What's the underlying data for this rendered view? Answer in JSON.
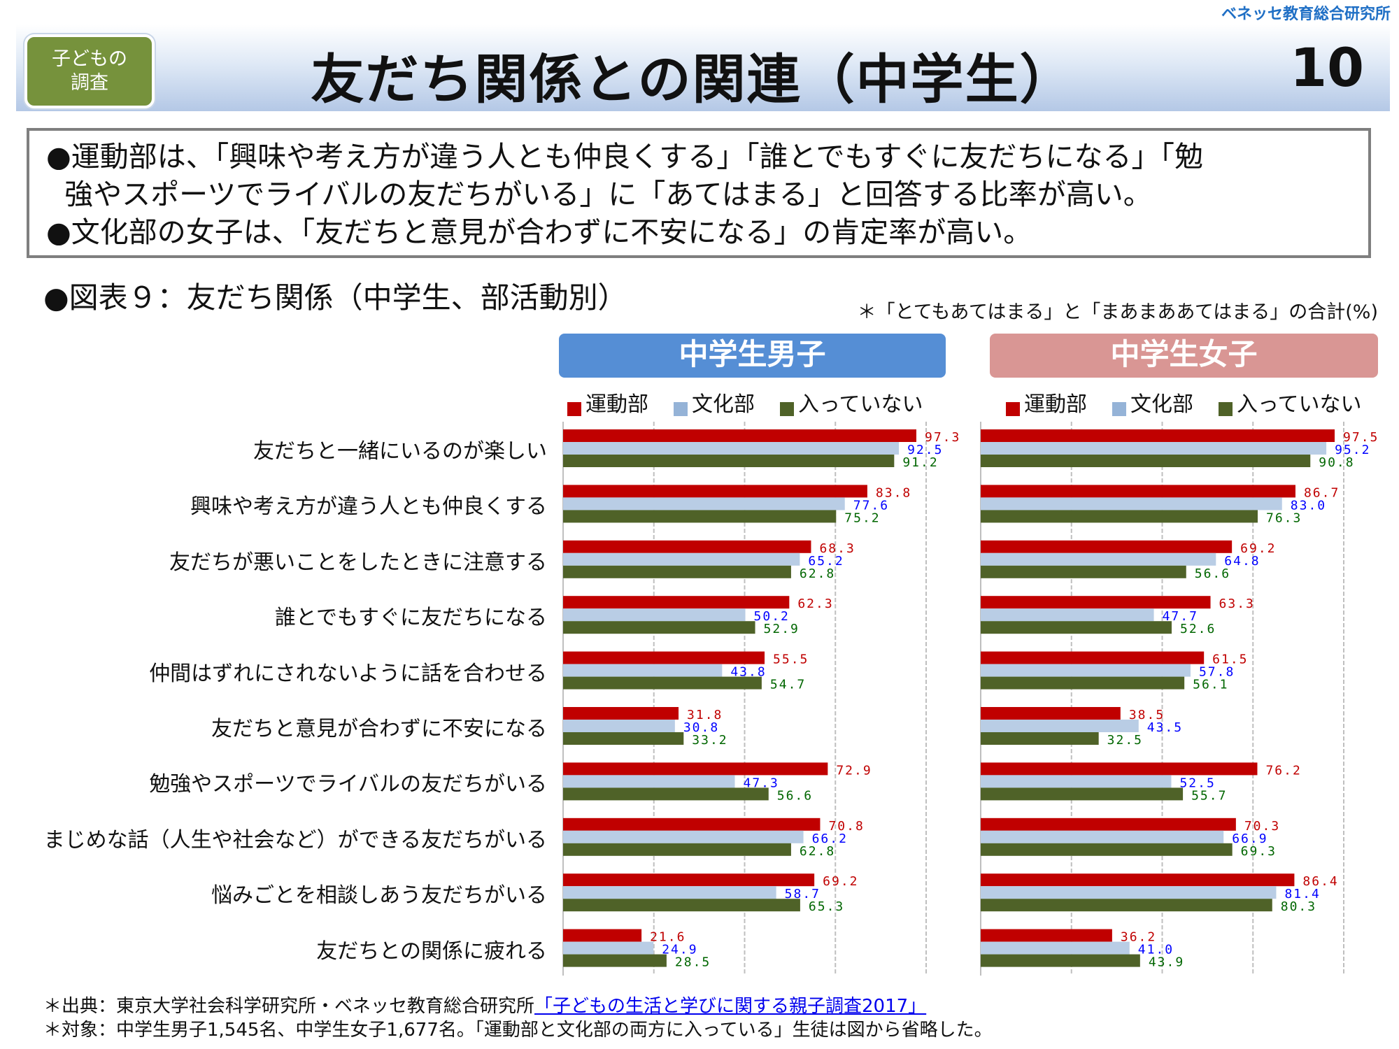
{
  "org": "ベネッセ教育総合研究所",
  "badge": {
    "line1": "子どもの",
    "line2": "調査"
  },
  "header": {
    "title": "友だち関係との関連（中学生）",
    "page_number": "10"
  },
  "summary": [
    "●運動部は、「興味や考え方が違う人とも仲良くする」「誰とでもすぐに友だちになる」「勉",
    "  強やスポーツでライバルの友だちがいる」に「あてはまる」と回答する比率が高い。",
    "●文化部の女子は、「友だちと意見が合わずに不安になる」の肯定率が高い。"
  ],
  "figure_title": "●図表９：友だち関係（中学生、部活動別）",
  "figure_note": "＊「とてもあてはまる」と「まあまああてはまる」の合計(%)",
  "colors": {
    "sports": "#c00000",
    "culture": "#b9cde5",
    "none": "#4f6228",
    "sports_text": "#c00000",
    "culture_text": "#0000ff",
    "none_text": "#006600"
  },
  "chart_data": [
    {
      "type": "bar",
      "orientation": "horizontal",
      "title": "中学生男子",
      "xlim": [
        0,
        100
      ],
      "grid": true,
      "legend": [
        "運動部",
        "文化部",
        "入っていない"
      ],
      "categories": [
        "友だちと一緒にいるのが楽しい",
        "興味や考え方が違う人とも仲良くする",
        "友だちが悪いことをしたときに注意する",
        "誰とでもすぐに友だちになる",
        "仲間はずれにされないように話を合わせる",
        "友だちと意見が合わずに不安になる",
        "勉強やスポーツでライバルの友だちがいる",
        "まじめな話（人生や社会など）ができる友だちがいる",
        "悩みごとを相談しあう友だちがいる",
        "友だちとの関係に疲れる"
      ],
      "series": [
        {
          "name": "運動部",
          "values": [
            97.3,
            83.8,
            68.3,
            62.3,
            55.5,
            31.8,
            72.9,
            70.8,
            69.2,
            21.6
          ]
        },
        {
          "name": "文化部",
          "values": [
            92.5,
            77.6,
            65.2,
            50.2,
            43.8,
            30.8,
            47.3,
            66.2,
            58.7,
            24.9
          ]
        },
        {
          "name": "入っていない",
          "values": [
            91.2,
            75.2,
            62.8,
            52.9,
            54.7,
            33.2,
            56.6,
            62.8,
            65.3,
            28.5
          ]
        }
      ]
    },
    {
      "type": "bar",
      "orientation": "horizontal",
      "title": "中学生女子",
      "xlim": [
        0,
        100
      ],
      "grid": true,
      "legend": [
        "運動部",
        "文化部",
        "入っていない"
      ],
      "categories": [
        "友だちと一緒にいるのが楽しい",
        "興味や考え方が違う人とも仲良くする",
        "友だちが悪いことをしたときに注意する",
        "誰とでもすぐに友だちになる",
        "仲間はずれにされないように話を合わせる",
        "友だちと意見が合わずに不安になる",
        "勉強やスポーツでライバルの友だちがいる",
        "まじめな話（人生や社会など）ができる友だちがいる",
        "悩みごとを相談しあう友だちがいる",
        "友だちとの関係に疲れる"
      ],
      "series": [
        {
          "name": "運動部",
          "values": [
            97.5,
            86.7,
            69.2,
            63.3,
            61.5,
            38.5,
            76.2,
            70.3,
            86.4,
            36.2
          ]
        },
        {
          "name": "文化部",
          "values": [
            95.2,
            83.0,
            64.8,
            47.7,
            57.8,
            43.5,
            52.5,
            66.9,
            81.4,
            41.0
          ]
        },
        {
          "name": "入っていない",
          "values": [
            90.8,
            76.3,
            56.6,
            52.6,
            56.1,
            32.5,
            55.7,
            69.3,
            80.3,
            43.9
          ]
        }
      ]
    }
  ],
  "row_labels": [
    "友だちと一緒にいるのが楽しい",
    "興味や考え方が違う人とも仲良くする",
    "友だちが悪いことをしたときに注意する",
    "誰とでもすぐに友だちになる",
    "仲間はずれにされないように話を合わせる",
    "友だちと意見が合わずに不安になる",
    "勉強やスポーツでライバルの友だちがいる",
    "まじめな話（人生や社会など）ができる友だちがいる",
    "悩みごとを相談しあう友だちがいる",
    "友だちとの関係に疲れる"
  ],
  "footer": {
    "source_prefix": "＊出典：東京大学社会科学研究所・ベネッセ教育総合研究所",
    "source_link": "「子どもの生活と学びに関する親子調査2017」",
    "target": "＊対象：中学生男子1,545名、中学生女子1,677名。「運動部と文化部の両方に入っている」生徒は図から省略した。"
  }
}
